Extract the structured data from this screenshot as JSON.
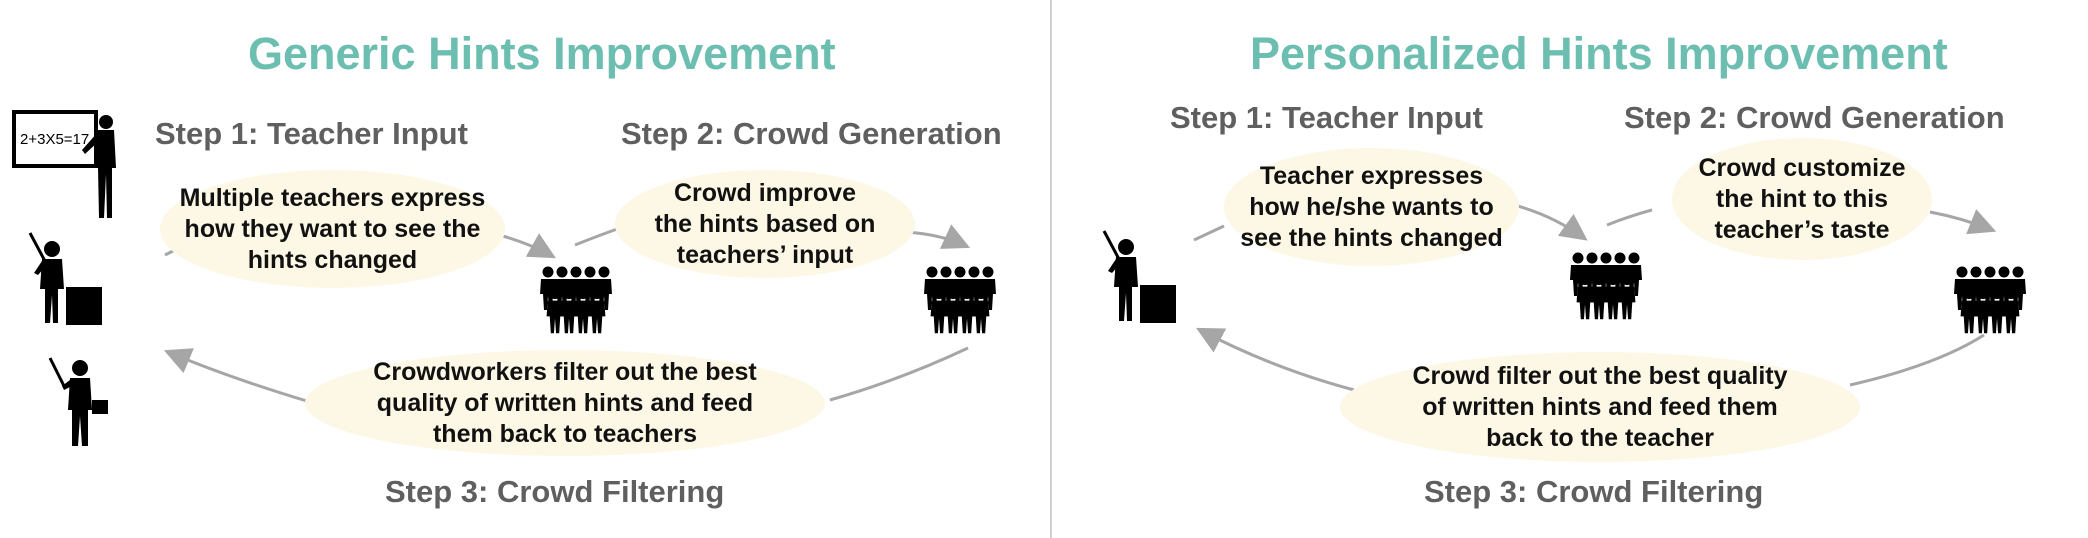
{
  "colors": {
    "title": "#6cbfb0",
    "step": "#5f5f5f",
    "bubble": "#fdf8e6",
    "arrow": "#a6a6a6",
    "icon": "#000000"
  },
  "generic": {
    "title": "Generic Hints Improvement",
    "step1": "Step 1: Teacher Input",
    "step2": "Step 2: Crowd Generation",
    "step3": "Step 3: Crowd Filtering",
    "bubble1": "Multiple teachers express\nhow they want to see the\nhints changed",
    "bubble2": "Crowd improve\nthe hints based on\nteachers’ input",
    "bubble3": "Crowdworkers filter out the best\nquality of written hints and feed\nthem back to teachers",
    "board_text": "2+3X5=17"
  },
  "personalized": {
    "title": "Personalized Hints Improvement",
    "step1": "Step 1: Teacher Input",
    "step2": "Step 2: Crowd Generation",
    "step3": "Step 3: Crowd Filtering",
    "bubble1": "Teacher expresses\nhow he/she wants to\nsee the hints changed",
    "bubble2": "Crowd customize\nthe hint to this\nteacher’s taste",
    "bubble3": "Crowd filter out the best quality\nof written hints and feed them\nback to the teacher"
  },
  "icons": [
    "teacher-board-icon",
    "teacher-desk-icon",
    "teacher-pointer-icon",
    "crowd-icon",
    "arrow-icon"
  ]
}
